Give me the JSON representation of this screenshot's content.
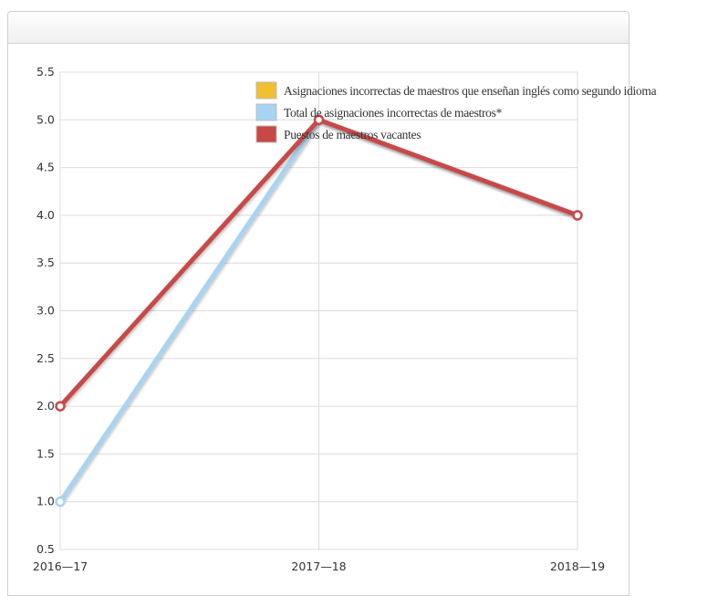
{
  "panel": {
    "title": ""
  },
  "chart_data": {
    "type": "line",
    "categories": [
      "2016—17",
      "2017—18",
      "2018—19"
    ],
    "ylim": [
      0.5,
      5.5
    ],
    "yticks": [
      "0.5",
      "1.0",
      "1.5",
      "2.0",
      "2.5",
      "3.0",
      "3.5",
      "4.0",
      "4.5",
      "5.0",
      "5.5"
    ],
    "grid": true,
    "legend_position": "top-right",
    "series": [
      {
        "name": "Asignaciones incorrectas de maestros que enseñan inglés como segundo idioma",
        "color": "#f0c030",
        "values": [
          null,
          null,
          null
        ]
      },
      {
        "name": "Total de asignaciones incorrectas de maestros*",
        "color": "#a8d4f2",
        "values": [
          1.0,
          5.0,
          4.0
        ]
      },
      {
        "name": "Puestos de maestros vacantes",
        "color": "#c84848",
        "values": [
          2.0,
          5.0,
          4.0
        ]
      }
    ]
  }
}
